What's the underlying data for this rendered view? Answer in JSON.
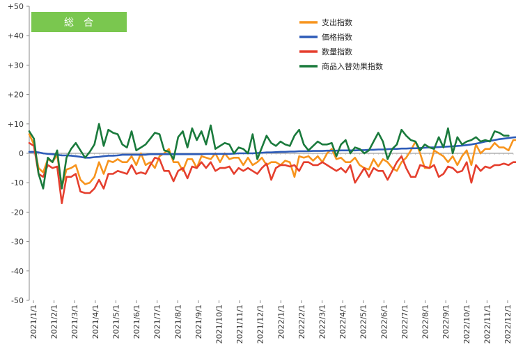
{
  "chart_data": {
    "type": "line",
    "title": "総　合",
    "xlabel": "",
    "ylabel": "",
    "ylim": [
      -50,
      50
    ],
    "y_ticks": [
      "+50",
      "+40",
      "+30",
      "+20",
      "+10",
      "0",
      "-10",
      "-20",
      "-30",
      "-40",
      "-50"
    ],
    "x_tick_labels": [
      "2021/1/1",
      "2021/2/1",
      "2021/3/1",
      "2021/4/1",
      "2021/5/1",
      "2021/6/1",
      "2021/7/1",
      "2021/8/1",
      "2021/9/1",
      "2021/10/1",
      "2021/11/1",
      "2021/12/1",
      "2022/1/1",
      "2022/2/1",
      "2022/3/1",
      "2022/4/1",
      "2022/5/1",
      "2022/6/1",
      "2022/7/1",
      "2022/8/1",
      "2022/9/1",
      "2022/10/1",
      "2022/11/1",
      "2022/12/1"
    ],
    "x_range_weeks": [
      0,
      104
    ],
    "grid": false,
    "legend_position": "top-right",
    "series": [
      {
        "name": "支出指数",
        "color": "#f7941d",
        "values": [
          6.5,
          3,
          -5,
          -6.5,
          -2,
          -3,
          -0.5,
          -11.5,
          -5.5,
          -5,
          -4,
          -9,
          -10.5,
          -10,
          -8,
          -3,
          -7,
          -2.5,
          -3,
          -2,
          -3,
          -3,
          -1,
          -4,
          0,
          -4,
          -3,
          -5,
          -1,
          0,
          1.5,
          -3,
          -3,
          -6,
          -2,
          -2,
          -5,
          -1,
          -1.5,
          -2,
          0,
          -3,
          0,
          -2,
          -1.5,
          -1.5,
          -4,
          -1.5,
          -4,
          -3,
          -1.5,
          -4,
          -3,
          -3,
          -4,
          -2.5,
          -3,
          -8,
          -1,
          -1.5,
          -1,
          -2.5,
          -1,
          -3,
          0,
          1.5,
          -2,
          -1.5,
          -3,
          -3,
          -1.5,
          -4,
          -5,
          -5.5,
          -2,
          -4.5,
          -2,
          -3,
          -5,
          -6,
          -3,
          -1.5,
          1,
          4,
          0,
          -5,
          -5,
          1,
          0,
          -1,
          -3,
          -1,
          -4,
          -1,
          1,
          -4,
          3,
          0,
          1.5,
          1.5,
          3.5,
          2,
          2,
          1,
          4.5,
          4.5
        ]
      },
      {
        "name": "価格指数",
        "color": "#2e5cb8",
        "values": [
          0.5,
          0.5,
          0.3,
          0,
          -0.2,
          -0.3,
          -0.5,
          -0.7,
          -0.7,
          -0.8,
          -1,
          -1.2,
          -1.5,
          -1.5,
          -1.3,
          -1.2,
          -1,
          -0.8,
          -0.8,
          -0.7,
          -0.5,
          -0.5,
          -0.5,
          -0.5,
          -0.5,
          -0.5,
          -0.3,
          -0.3,
          -0.3,
          -0.3,
          -0.3,
          -0.3,
          -0.3,
          -0.3,
          -0.3,
          -0.3,
          -0.3,
          -0.3,
          -0.2,
          -0.2,
          -0.2,
          -0.2,
          -0.2,
          -0.2,
          -0.1,
          0,
          0,
          0,
          0,
          0.1,
          0.2,
          0.3,
          0.3,
          0.4,
          0.5,
          0.5,
          0.6,
          0.6,
          0.7,
          0.7,
          0.7,
          0.8,
          0.8,
          0.8,
          0.9,
          0.9,
          0.9,
          1,
          1,
          1,
          1,
          1.1,
          1.1,
          1.2,
          1.2,
          1.3,
          1.3,
          1.4,
          1.5,
          1.5,
          1.6,
          1.6,
          1.7,
          1.7,
          1.8,
          1.9,
          2,
          2,
          2.1,
          2.2,
          2.3,
          2.4,
          2.5,
          2.6,
          2.8,
          3,
          3.3,
          3.6,
          4,
          4.2,
          4.5,
          4.8,
          5,
          5.2,
          5.4,
          5.5,
          5.5
        ]
      },
      {
        "name": "数量指数",
        "color": "#e53f2e",
        "values": [
          3.5,
          2.5,
          -7,
          -8,
          -4,
          -5,
          -4.5,
          -17,
          -8,
          -8,
          -7,
          -13,
          -13.5,
          -13.5,
          -12,
          -9,
          -12,
          -7,
          -7,
          -6,
          -6.5,
          -7,
          -4,
          -7,
          -6.5,
          -7,
          -4,
          -1.5,
          -2,
          -6,
          -6,
          -9.5,
          -6,
          -5,
          -8.5,
          -4.5,
          -5,
          -3,
          -5,
          -3,
          -6,
          -5,
          -5,
          -4.5,
          -7,
          -5,
          -6,
          -5,
          -6,
          -7,
          -5,
          -3.5,
          -9,
          -5,
          -4,
          -4,
          -4.5,
          -4,
          -6,
          -3,
          -3,
          -4,
          -4,
          -3,
          -4,
          -5,
          -6,
          -5,
          -6.5,
          -4,
          -10,
          -7.5,
          -5,
          -8,
          -5,
          -6,
          -6,
          -9,
          -6,
          -3,
          -1,
          -5,
          -8,
          -8,
          -4,
          -4.5,
          -5,
          -4,
          -8,
          -7,
          -4.5,
          -5,
          -6.5,
          -6,
          -3,
          -10,
          -4,
          -6,
          -4.5,
          -5,
          -4,
          -4,
          -3.5,
          -4,
          -3,
          -3
        ]
      },
      {
        "name": "商品入替効果指数",
        "color": "#1a7a3c",
        "values": [
          7.5,
          5,
          -7,
          -12,
          -1.5,
          -3,
          1,
          -12,
          -1.5,
          1.5,
          3.5,
          1,
          -1.5,
          0.5,
          3,
          10,
          2.5,
          8,
          7,
          6.5,
          3,
          2,
          7.5,
          1,
          2,
          3,
          5,
          7,
          6.5,
          1,
          0.5,
          -2,
          5.5,
          7.5,
          2,
          8.5,
          4.5,
          7.5,
          3,
          9.5,
          1.5,
          2.5,
          3.5,
          3,
          0,
          2,
          1.5,
          0,
          6.5,
          -2,
          2,
          6,
          3.5,
          2.5,
          4,
          3,
          2.5,
          6,
          8,
          3,
          1,
          2.5,
          4,
          3,
          3,
          3.5,
          -1,
          3,
          4.5,
          0,
          2,
          1.5,
          0,
          1,
          4,
          7,
          4,
          -2,
          1.5,
          3,
          8,
          6,
          4.5,
          4,
          1,
          3,
          2,
          1.5,
          5.5,
          2,
          8.5,
          0,
          5.5,
          3,
          4,
          4.5,
          5.5,
          4,
          4.5,
          4,
          7.5,
          7,
          6,
          6
        ]
      }
    ]
  }
}
